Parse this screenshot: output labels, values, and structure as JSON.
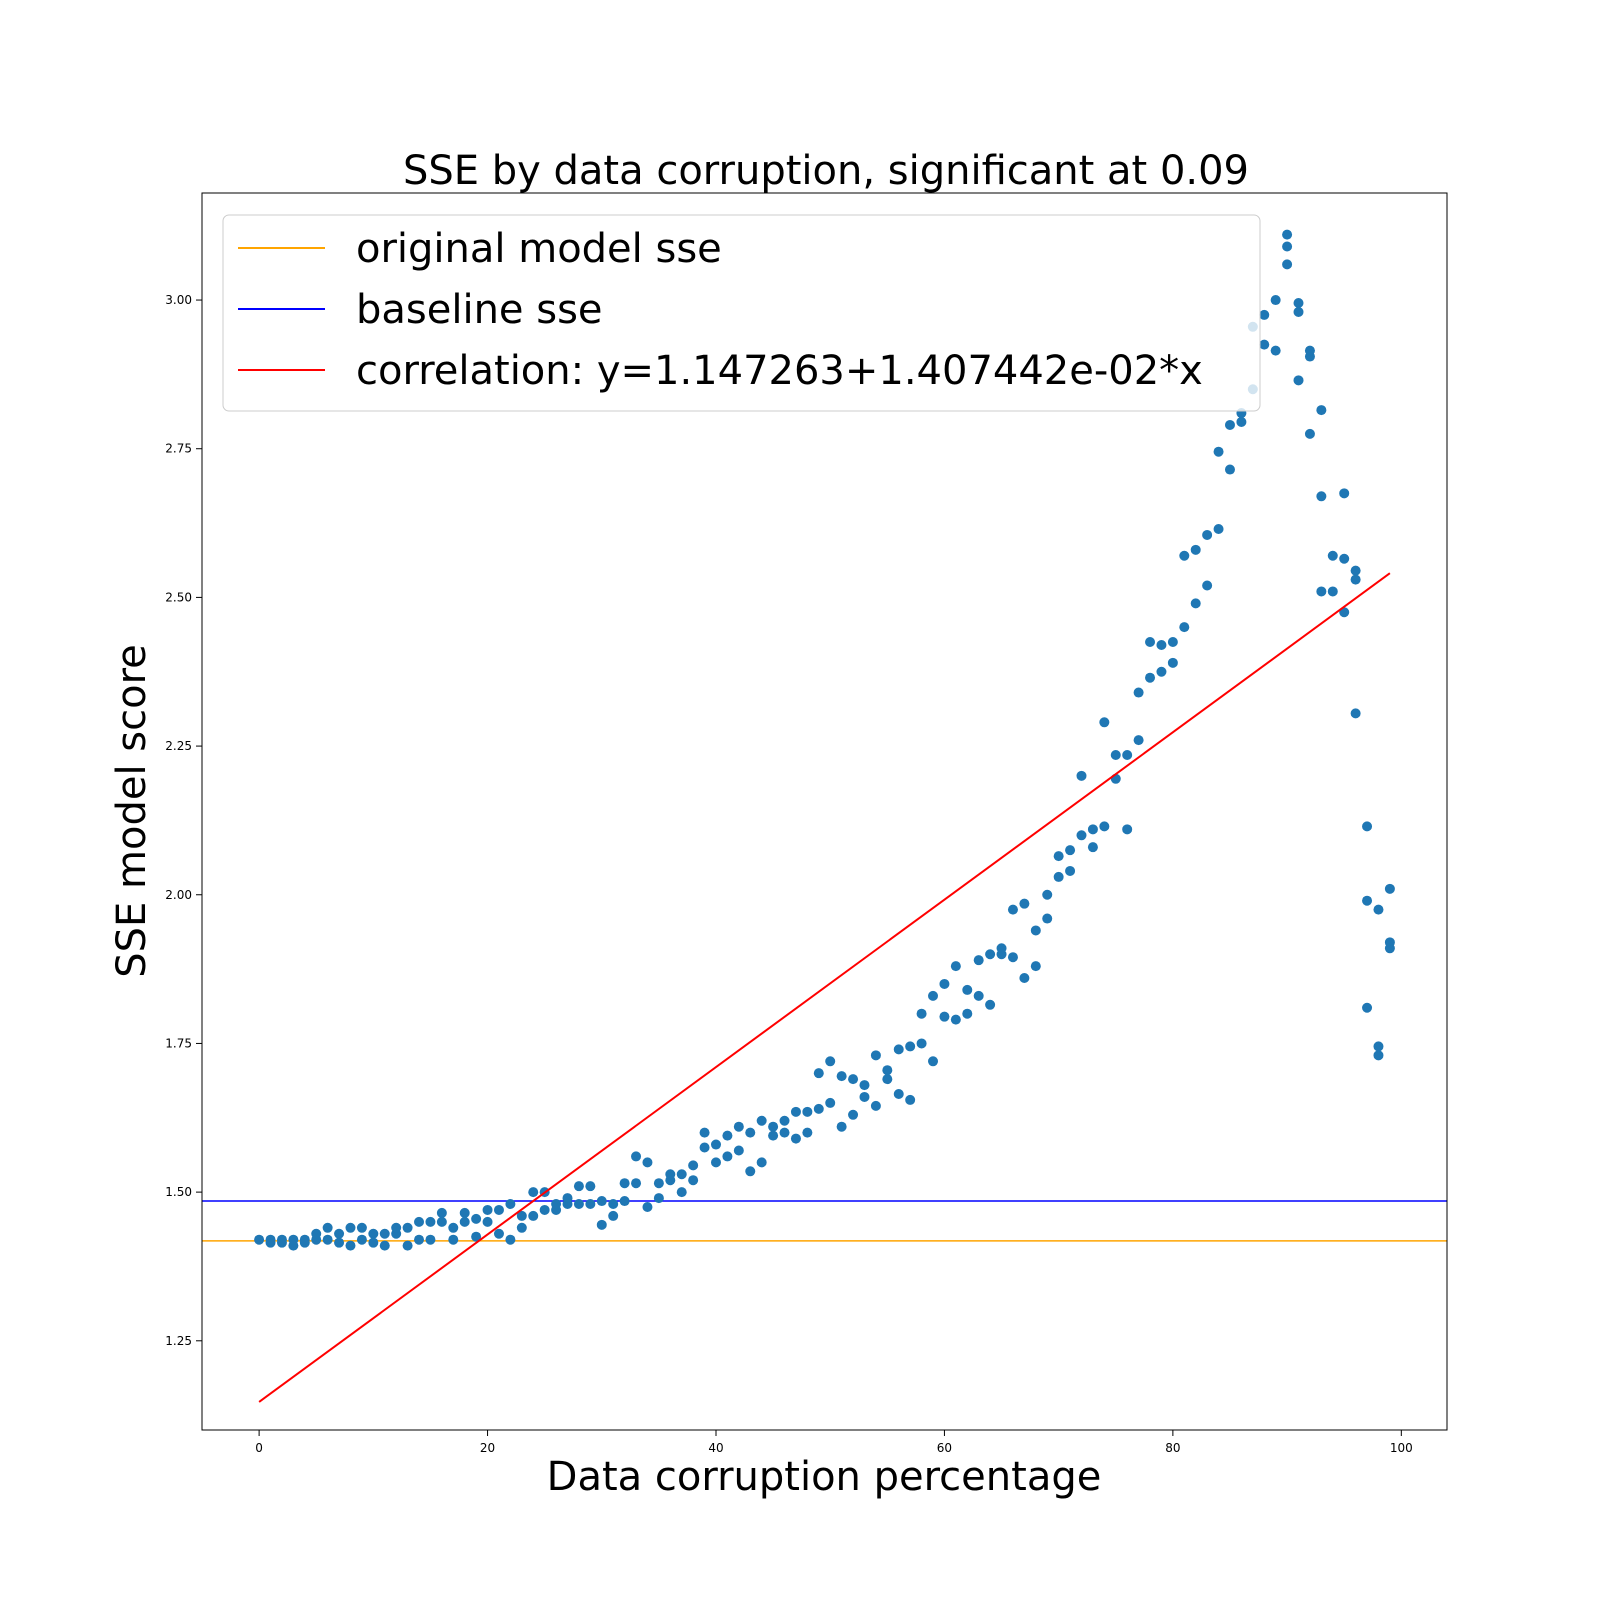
{
  "chart_data": {
    "type": "scatter",
    "title": "SSE by data corruption, significant at 0.09",
    "xlabel": "Data corruption percentage",
    "ylabel": "SSE model score",
    "xlim": [
      -5,
      104
    ],
    "ylim": [
      1.1,
      3.18
    ],
    "xticks": [
      0,
      20,
      40,
      60,
      80,
      100
    ],
    "xtick_labels": [
      "0",
      "20",
      "40",
      "60",
      "80",
      "100"
    ],
    "yticks": [
      1.25,
      1.5,
      1.75,
      2.0,
      2.25,
      2.5,
      2.75,
      3.0
    ],
    "ytick_labels": [
      "1.25",
      "1.50",
      "1.75",
      "2.00",
      "2.25",
      "2.50",
      "2.75",
      "3.00"
    ],
    "grid": false,
    "legend_position": "top-left",
    "colors": {
      "scatter": "#1f77b4",
      "original": "#ffa500",
      "baseline": "#0000ff",
      "correlation": "#ff0000"
    },
    "series": [
      {
        "name": "scatter",
        "x": [
          0,
          1,
          1,
          2,
          2,
          3,
          3,
          4,
          4,
          5,
          5,
          6,
          6,
          7,
          7,
          8,
          8,
          9,
          9,
          10,
          10,
          11,
          11,
          12,
          12,
          13,
          13,
          14,
          14,
          15,
          15,
          16,
          16,
          17,
          17,
          18,
          18,
          19,
          19,
          20,
          20,
          21,
          21,
          22,
          22,
          23,
          23,
          24,
          24,
          25,
          25,
          26,
          26,
          27,
          27,
          28,
          28,
          29,
          29,
          30,
          30,
          31,
          31,
          32,
          32,
          33,
          33,
          34,
          34,
          35,
          35,
          36,
          36,
          37,
          37,
          38,
          38,
          39,
          39,
          40,
          40,
          41,
          41,
          42,
          42,
          43,
          43,
          44,
          44,
          45,
          45,
          46,
          46,
          47,
          47,
          48,
          48,
          49,
          49,
          50,
          50,
          51,
          51,
          52,
          52,
          53,
          53,
          54,
          54,
          55,
          55,
          56,
          56,
          57,
          57,
          58,
          58,
          59,
          59,
          60,
          60,
          61,
          61,
          62,
          62,
          63,
          63,
          64,
          64,
          65,
          65,
          66,
          66,
          67,
          67,
          68,
          68,
          69,
          69,
          70,
          70,
          71,
          71,
          72,
          72,
          73,
          73,
          74,
          74,
          75,
          75,
          76,
          76,
          77,
          77,
          78,
          78,
          79,
          79,
          80,
          80,
          81,
          81,
          82,
          82,
          83,
          83,
          84,
          84,
          85,
          85,
          86,
          86,
          87,
          87,
          88,
          88,
          89,
          89,
          90,
          90,
          90,
          91,
          91,
          91,
          92,
          92,
          92,
          93,
          93,
          93,
          94,
          94,
          95,
          95,
          95,
          96,
          96,
          96,
          97,
          97,
          97,
          98,
          98,
          98,
          99,
          99,
          99
        ],
        "y": [
          1.42,
          1.415,
          1.42,
          1.415,
          1.42,
          1.41,
          1.42,
          1.415,
          1.42,
          1.42,
          1.43,
          1.42,
          1.44,
          1.415,
          1.43,
          1.41,
          1.44,
          1.42,
          1.44,
          1.415,
          1.43,
          1.41,
          1.43,
          1.43,
          1.44,
          1.41,
          1.44,
          1.42,
          1.45,
          1.42,
          1.45,
          1.45,
          1.465,
          1.42,
          1.44,
          1.45,
          1.465,
          1.425,
          1.455,
          1.45,
          1.47,
          1.43,
          1.47,
          1.42,
          1.48,
          1.44,
          1.46,
          1.46,
          1.5,
          1.47,
          1.5,
          1.47,
          1.48,
          1.48,
          1.49,
          1.48,
          1.51,
          1.48,
          1.51,
          1.445,
          1.485,
          1.46,
          1.48,
          1.485,
          1.515,
          1.515,
          1.56,
          1.475,
          1.55,
          1.49,
          1.515,
          1.52,
          1.53,
          1.5,
          1.53,
          1.52,
          1.545,
          1.575,
          1.6,
          1.55,
          1.58,
          1.56,
          1.595,
          1.57,
          1.61,
          1.535,
          1.6,
          1.55,
          1.62,
          1.595,
          1.61,
          1.6,
          1.62,
          1.59,
          1.635,
          1.6,
          1.635,
          1.64,
          1.7,
          1.65,
          1.72,
          1.61,
          1.695,
          1.63,
          1.69,
          1.66,
          1.68,
          1.645,
          1.73,
          1.69,
          1.705,
          1.665,
          1.74,
          1.655,
          1.745,
          1.75,
          1.8,
          1.72,
          1.83,
          1.795,
          1.85,
          1.79,
          1.88,
          1.8,
          1.84,
          1.83,
          1.89,
          1.815,
          1.9,
          1.9,
          1.91,
          1.895,
          1.975,
          1.86,
          1.985,
          1.88,
          1.94,
          1.96,
          2.0,
          2.03,
          2.065,
          2.04,
          2.075,
          2.1,
          2.2,
          2.08,
          2.11,
          2.115,
          2.29,
          2.195,
          2.235,
          2.11,
          2.235,
          2.26,
          2.34,
          2.365,
          2.425,
          2.375,
          2.42,
          2.39,
          2.425,
          2.45,
          2.57,
          2.49,
          2.58,
          2.52,
          2.605,
          2.615,
          2.745,
          2.715,
          2.79,
          2.795,
          2.81,
          2.85,
          2.955,
          2.925,
          2.975,
          2.915,
          3.0,
          3.06,
          3.09,
          3.11,
          2.865,
          2.98,
          2.995,
          2.775,
          2.905,
          2.915,
          2.51,
          2.67,
          2.815,
          2.51,
          2.57,
          2.475,
          2.565,
          2.675,
          2.305,
          2.53,
          2.545,
          1.81,
          1.99,
          2.115,
          1.73,
          1.745,
          1.975,
          1.91,
          1.92,
          2.01
        ]
      }
    ],
    "lines": [
      {
        "name": "original model sse",
        "type": "hline",
        "y": 1.418
      },
      {
        "name": "baseline sse",
        "type": "hline",
        "y": 1.485
      },
      {
        "name": "correlation: y=1.147263+1.407442e-02*x",
        "type": "fit",
        "intercept": 1.147263,
        "slope": 0.01407442,
        "x_range": [
          0,
          99
        ]
      }
    ]
  }
}
